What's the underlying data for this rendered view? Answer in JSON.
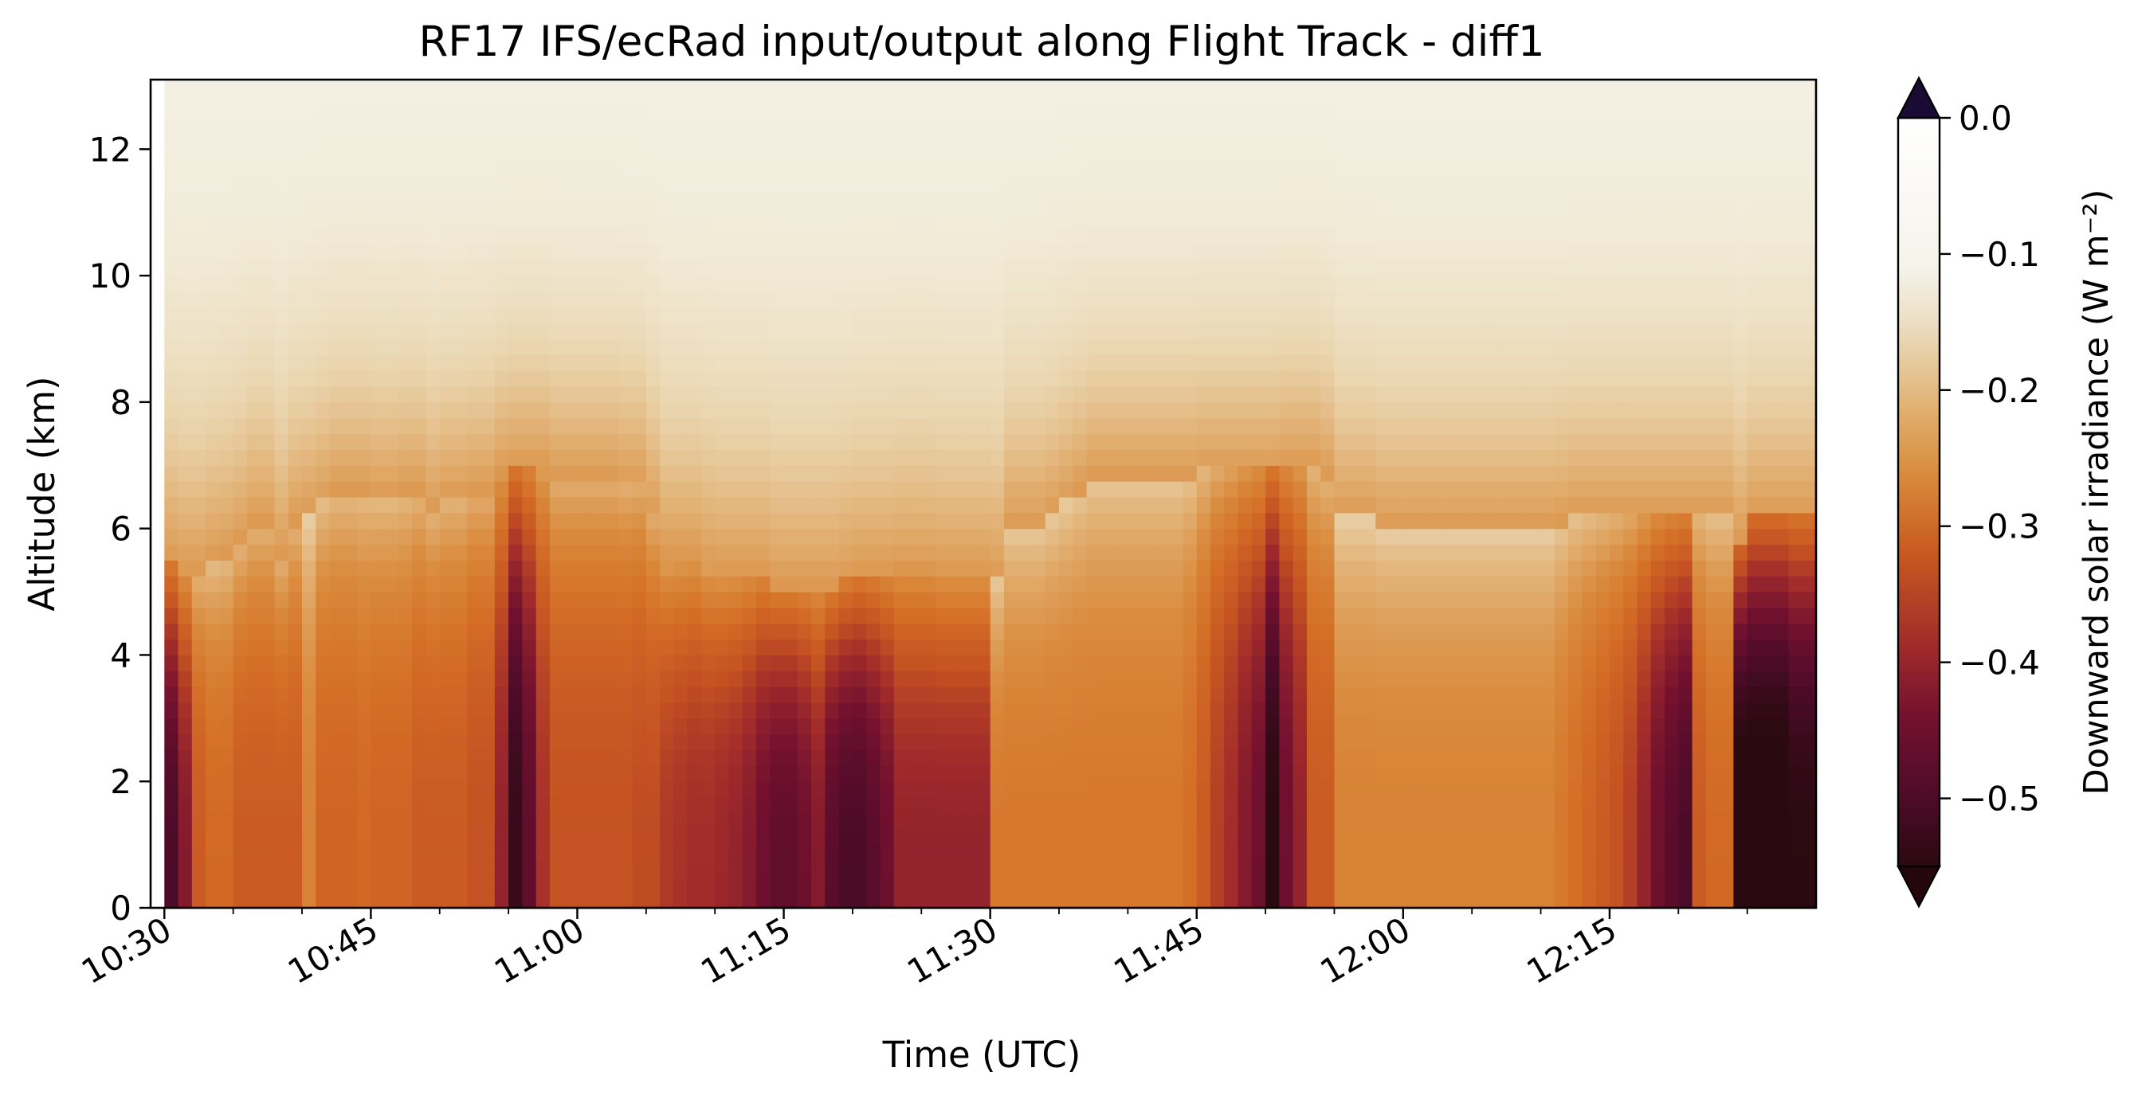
{
  "chart_data": {
    "type": "heatmap",
    "title": "RF17 IFS/ecRad input/output along Flight Track - diff1",
    "xlabel": "Time (UTC)",
    "ylabel": "Altitude (km)",
    "x_range": [
      "10:30",
      "12:30"
    ],
    "xlim": [
      "10:29",
      "12:29"
    ],
    "ylim": [
      0,
      13.1
    ],
    "x_ticks": [
      "10:30",
      "10:45",
      "11:00",
      "11:15",
      "11:30",
      "11:45",
      "12:00",
      "12:15"
    ],
    "y_ticks": [
      "0",
      "2",
      "4",
      "6",
      "8",
      "10",
      "12"
    ],
    "colorbar": {
      "label": "Downward solar irradiance (W m⁻²)",
      "range": [
        -0.55,
        0.0
      ],
      "ticks": [
        "0.0",
        "−0.1",
        "−0.2",
        "−0.3",
        "−0.4",
        "−0.5"
      ],
      "extend": "both",
      "colormap": "inferno-like (dark purple → orange → cream → white)"
    },
    "cell_minutes": 1,
    "layer_km": 0.25,
    "description": "Each time column is a profile: near-zero values aloft, decreasing below a cloud-top level; values are the minimum at the surface.",
    "columns": {
      "time": [
        "10:30",
        "10:31",
        "10:32",
        "10:33",
        "10:34",
        "10:35",
        "10:36",
        "10:37",
        "10:38",
        "10:39",
        "10:40",
        "10:41",
        "10:42",
        "10:43",
        "10:44",
        "10:45",
        "10:46",
        "10:47",
        "10:48",
        "10:49",
        "10:50",
        "10:51",
        "10:52",
        "10:53",
        "10:54",
        "10:55",
        "10:56",
        "10:57",
        "10:58",
        "10:59",
        "11:00",
        "11:01",
        "11:02",
        "11:03",
        "11:04",
        "11:05",
        "11:06",
        "11:07",
        "11:08",
        "11:09",
        "11:10",
        "11:11",
        "11:12",
        "11:13",
        "11:14",
        "11:15",
        "11:16",
        "11:17",
        "11:18",
        "11:19",
        "11:20",
        "11:21",
        "11:22",
        "11:23",
        "11:24",
        "11:25",
        "11:26",
        "11:27",
        "11:28",
        "11:29",
        "11:30",
        "11:31",
        "11:32",
        "11:33",
        "11:34",
        "11:35",
        "11:36",
        "11:37",
        "11:38",
        "11:39",
        "11:40",
        "11:41",
        "11:42",
        "11:43",
        "11:44",
        "11:45",
        "11:46",
        "11:47",
        "11:48",
        "11:49",
        "11:50",
        "11:51",
        "11:52",
        "11:53",
        "11:54",
        "11:55",
        "11:56",
        "11:57",
        "11:58",
        "11:59",
        "12:00",
        "12:01",
        "12:02",
        "12:03",
        "12:04",
        "12:05",
        "12:06",
        "12:07",
        "12:08",
        "12:09",
        "12:10",
        "12:11",
        "12:12",
        "12:13",
        "12:14",
        "12:15",
        "12:16",
        "12:17",
        "12:18",
        "12:19",
        "12:20",
        "12:21",
        "12:22",
        "12:23",
        "12:24",
        "12:25",
        "12:26",
        "12:27",
        "12:28",
        "12:29"
      ],
      "cloud_top_km": [
        5.5,
        5.3,
        5.3,
        5.5,
        5.6,
        5.8,
        6.1,
        6.1,
        5.6,
        6.1,
        6.2,
        6.4,
        6.6,
        6.6,
        6.6,
        6.5,
        6.5,
        6.6,
        6.6,
        6.3,
        6.5,
        6.5,
        6.6,
        6.6,
        6.9,
        7.0,
        7.0,
        7.0,
        6.8,
        6.8,
        6.8,
        6.8,
        6.8,
        6.7,
        6.7,
        6.2,
        5.6,
        5.6,
        5.6,
        5.4,
        5.3,
        5.3,
        5.3,
        5.3,
        5.1,
        5.1,
        5.1,
        5.1,
        5.1,
        5.2,
        5.3,
        5.3,
        5.3,
        5.4,
        5.4,
        5.4,
        5.3,
        5.3,
        5.3,
        5.3,
        5.2,
        6.0,
        6.0,
        6.0,
        6.2,
        6.4,
        6.6,
        6.8,
        6.8,
        6.8,
        6.8,
        6.8,
        6.8,
        6.8,
        6.8,
        6.9,
        6.9,
        6.9,
        6.9,
        6.9,
        6.9,
        7.0,
        7.0,
        7.0,
        6.8,
        6.2,
        6.2,
        6.2,
        6.0,
        6.0,
        6.0,
        6.0,
        6.0,
        6.0,
        6.0,
        6.0,
        6.0,
        6.0,
        6.0,
        6.0,
        6.0,
        6.1,
        6.2,
        6.2,
        6.2,
        6.2,
        6.2,
        6.2,
        6.2,
        6.2,
        6.2,
        6.2,
        6.2,
        6.2,
        5.8,
        6.2,
        6.2,
        6.2,
        6.2,
        6.2
      ],
      "min_value": [
        -0.5,
        -0.42,
        -0.3,
        -0.27,
        -0.27,
        -0.3,
        -0.3,
        -0.3,
        -0.3,
        -0.3,
        -0.22,
        -0.28,
        -0.28,
        -0.28,
        -0.27,
        -0.28,
        -0.28,
        -0.28,
        -0.3,
        -0.3,
        -0.3,
        -0.3,
        -0.32,
        -0.32,
        -0.4,
        -0.53,
        -0.47,
        -0.37,
        -0.32,
        -0.32,
        -0.32,
        -0.32,
        -0.32,
        -0.32,
        -0.33,
        -0.33,
        -0.36,
        -0.37,
        -0.38,
        -0.38,
        -0.39,
        -0.4,
        -0.42,
        -0.45,
        -0.47,
        -0.47,
        -0.45,
        -0.42,
        -0.48,
        -0.5,
        -0.5,
        -0.48,
        -0.45,
        -0.4,
        -0.4,
        -0.4,
        -0.4,
        -0.4,
        -0.4,
        -0.4,
        -0.24,
        -0.24,
        -0.24,
        -0.24,
        -0.24,
        -0.24,
        -0.24,
        -0.24,
        -0.24,
        -0.24,
        -0.24,
        -0.24,
        -0.24,
        -0.24,
        -0.26,
        -0.3,
        -0.35,
        -0.38,
        -0.42,
        -0.45,
        -0.55,
        -0.45,
        -0.4,
        -0.3,
        -0.3,
        -0.22,
        -0.22,
        -0.22,
        -0.22,
        -0.22,
        -0.22,
        -0.22,
        -0.22,
        -0.22,
        -0.22,
        -0.22,
        -0.22,
        -0.22,
        -0.22,
        -0.22,
        -0.22,
        -0.24,
        -0.26,
        -0.28,
        -0.3,
        -0.32,
        -0.35,
        -0.4,
        -0.45,
        -0.48,
        -0.5,
        -0.3,
        -0.27,
        -0.27,
        -0.58,
        -0.58,
        -0.58,
        -0.58,
        -0.55,
        -0.55
      ]
    }
  }
}
